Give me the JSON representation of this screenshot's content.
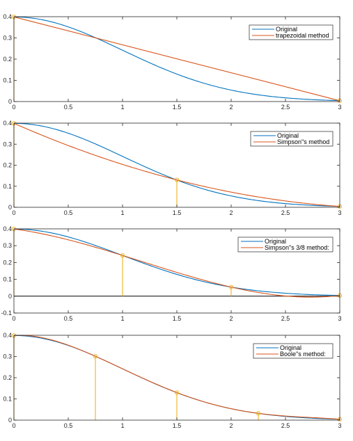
{
  "chart_data": [
    {
      "type": "line",
      "title": "",
      "xlabel": "",
      "ylabel": "",
      "xlim": [
        0,
        3
      ],
      "ylim": [
        0,
        0.4
      ],
      "xticks": [
        "0",
        "0.5",
        "1",
        "1.5",
        "2",
        "2.5",
        "3"
      ],
      "yticks": [
        "0",
        "0.1",
        "0.2",
        "0.3",
        "0.4"
      ],
      "legend": {
        "position": "top-right",
        "entries": [
          "Original",
          "trapezoidal method"
        ]
      },
      "series": [
        {
          "name": "Original",
          "color": "#0072bd",
          "function": "standard-normal-pdf",
          "x": [
            0,
            0.5,
            1,
            1.5,
            2,
            2.5,
            3
          ],
          "y": [
            0.399,
            0.352,
            0.242,
            0.13,
            0.054,
            0.018,
            0.004
          ]
        },
        {
          "name": "trapezoidal method",
          "color": "#d95319",
          "x": [
            0,
            3
          ],
          "y": [
            0.399,
            0.004
          ]
        }
      ],
      "nodes": {
        "color": "#edb120",
        "x": [
          0,
          3
        ],
        "y": [
          0.399,
          0.004
        ]
      }
    },
    {
      "type": "line",
      "title": "",
      "xlabel": "",
      "ylabel": "",
      "xlim": [
        0,
        3
      ],
      "ylim": [
        0,
        0.4
      ],
      "xticks": [
        "0",
        "0.5",
        "1",
        "1.5",
        "2",
        "2.5",
        "3"
      ],
      "yticks": [
        "0",
        "0.1",
        "0.2",
        "0.3",
        "0.4"
      ],
      "legend": {
        "position": "top-right",
        "entries": [
          "Original",
          "Simpson\"s method"
        ]
      },
      "series": [
        {
          "name": "Original",
          "color": "#0072bd",
          "function": "standard-normal-pdf",
          "x": [
            0,
            0.5,
            1,
            1.5,
            2,
            2.5,
            3
          ],
          "y": [
            0.399,
            0.352,
            0.242,
            0.13,
            0.054,
            0.018,
            0.004
          ]
        },
        {
          "name": "Simpson\"s method",
          "color": "#d95319",
          "function": "interpolating-polynomial",
          "x": [
            0,
            1.5,
            3
          ],
          "y": [
            0.399,
            0.13,
            0.004
          ]
        }
      ],
      "nodes": {
        "color": "#edb120",
        "x": [
          0,
          1.5,
          3
        ],
        "y": [
          0.399,
          0.13,
          0.004
        ]
      }
    },
    {
      "type": "line",
      "title": "",
      "xlabel": "",
      "ylabel": "",
      "xlim": [
        0,
        3
      ],
      "ylim": [
        -0.1,
        0.4
      ],
      "xticks": [
        "0",
        "0.5",
        "1",
        "1.5",
        "2",
        "2.5",
        "3"
      ],
      "yticks": [
        "-0.1",
        "0",
        "0.1",
        "0.2",
        "0.3",
        "0.4"
      ],
      "zero_line": true,
      "legend": {
        "position": "top-right",
        "entries": [
          "Original",
          "Simpson\"s 3/8 method:"
        ]
      },
      "series": [
        {
          "name": "Original",
          "color": "#0072bd",
          "function": "standard-normal-pdf",
          "x": [
            0,
            0.5,
            1,
            1.5,
            2,
            2.5,
            3
          ],
          "y": [
            0.399,
            0.352,
            0.242,
            0.13,
            0.054,
            0.018,
            0.004
          ]
        },
        {
          "name": "Simpson\"s 3/8 method:",
          "color": "#d95319",
          "function": "interpolating-polynomial",
          "x": [
            0,
            1,
            2,
            3
          ],
          "y": [
            0.399,
            0.242,
            0.054,
            0.004
          ]
        }
      ],
      "nodes": {
        "color": "#edb120",
        "x": [
          0,
          1,
          2,
          3
        ],
        "y": [
          0.399,
          0.242,
          0.054,
          0.004
        ]
      }
    },
    {
      "type": "line",
      "title": "",
      "xlabel": "",
      "ylabel": "",
      "xlim": [
        0,
        3
      ],
      "ylim": [
        0,
        0.4
      ],
      "xticks": [
        "0",
        "0.5",
        "1",
        "1.5",
        "2",
        "2.5",
        "3"
      ],
      "yticks": [
        "0",
        "0.1",
        "0.2",
        "0.3",
        "0.4"
      ],
      "legend": {
        "position": "top-right",
        "entries": [
          "Original",
          "Boole\"s method:"
        ]
      },
      "series": [
        {
          "name": "Original",
          "color": "#0072bd",
          "function": "standard-normal-pdf",
          "x": [
            0,
            0.5,
            1,
            1.5,
            2,
            2.5,
            3
          ],
          "y": [
            0.399,
            0.352,
            0.242,
            0.13,
            0.054,
            0.018,
            0.004
          ]
        },
        {
          "name": "Boole\"s method:",
          "color": "#d95319",
          "function": "interpolating-polynomial",
          "x": [
            0,
            0.75,
            1.5,
            2.25,
            3
          ],
          "y": [
            0.399,
            0.301,
            0.13,
            0.032,
            0.004
          ]
        }
      ],
      "nodes": {
        "color": "#edb120",
        "x": [
          0,
          0.75,
          1.5,
          2.25,
          3
        ],
        "y": [
          0.399,
          0.301,
          0.13,
          0.032,
          0.004
        ]
      }
    }
  ]
}
